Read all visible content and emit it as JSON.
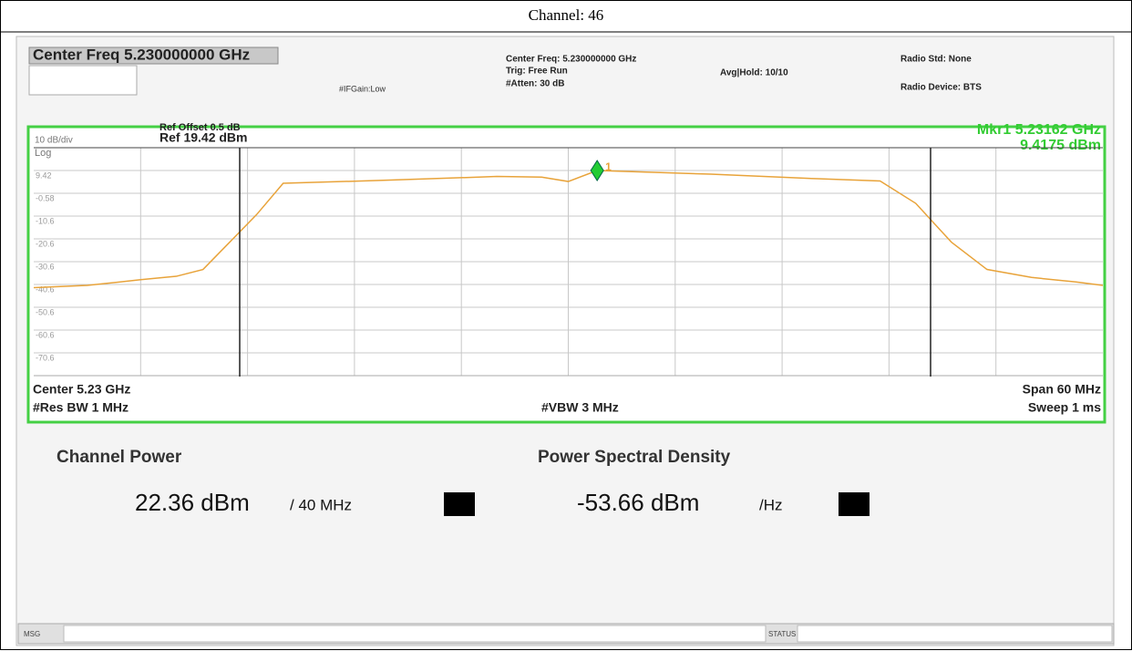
{
  "title": "Channel: 46",
  "header": {
    "center_box": "Center Freq 5.230000000 GHz",
    "ifgain": "#IFGain:Low",
    "center_freq": "Center Freq: 5.230000000 GHz",
    "trig": "Trig: Free Run",
    "atten": "#Atten: 30 dB",
    "avg_hold": "Avg|Hold: 10/10",
    "radio_std": "Radio Std: None",
    "radio_device": "Radio Device: BTS"
  },
  "chart_data": {
    "type": "line",
    "ref_offset": "Ref Offset 0.5 dB",
    "ref_level": "Ref 19.42 dBm",
    "scale": "10 dB/div",
    "scale_type": "Log",
    "marker_freq": "Mkr1 5.23162 GHz",
    "marker_level": "9.4175 dBm",
    "center": "Center 5.23 GHz",
    "res_bw": "#Res BW 1 MHz",
    "vbw": "#VBW 3 MHz",
    "span": "Span 60 MHz",
    "sweep": "Sweep 1 ms",
    "x": [
      5.2,
      5.203,
      5.206,
      5.208,
      5.2095,
      5.211,
      5.2125,
      5.214,
      5.22,
      5.226,
      5.2285,
      5.23,
      5.23162,
      5.238,
      5.244,
      5.2475,
      5.2495,
      5.2515,
      5.2535,
      5.256,
      5.2585,
      5.26
    ],
    "series": [
      {
        "color": "#e8a33a",
        "values": [
          -42,
          -41,
          -38.5,
          -37,
          -34,
          -22,
          -10,
          3.8,
          5.2,
          6.8,
          6.5,
          4.6,
          9.42,
          7.8,
          5.8,
          4.8,
          -5,
          -22,
          -34,
          -37.5,
          -39.5,
          -41
        ]
      }
    ],
    "xlim": [
      5.2,
      5.26
    ],
    "ylim": [
      -80.58,
      19.42
    ],
    "yticks": [
      9.42,
      -0.58,
      {
        "value": -10.58,
        "label": "-10.6"
      },
      {
        "value": -20.58,
        "label": "-20.6"
      },
      {
        "value": -30.58,
        "label": "-30.6"
      },
      {
        "value": -40.58,
        "label": "-40.6"
      },
      {
        "value": -50.58,
        "label": "-50.6"
      },
      {
        "value": -60.58,
        "label": "-60.6"
      },
      {
        "value": -70.58,
        "label": "-70.6"
      }
    ],
    "grid": true,
    "marker": {
      "x": 5.23162,
      "y": 9.4175,
      "label": "1",
      "color": "#22cc33"
    }
  },
  "results": {
    "channel_power_label": "Channel Power",
    "channel_power": "22.36 dBm",
    "channel_bw": "/ 40 MHz",
    "psd_label": "Power Spectral Density",
    "psd": "-53.66 dBm",
    "psd_unit": "/Hz"
  },
  "status_bar": {
    "msg": "MSG",
    "status": "STATUS"
  }
}
